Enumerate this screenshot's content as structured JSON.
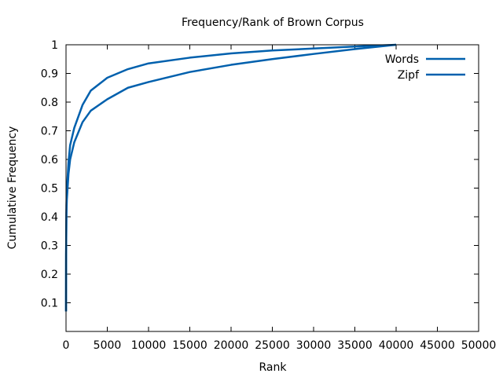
{
  "chart_data": {
    "type": "line",
    "title": "Frequency/Rank of Brown Corpus",
    "xlabel": "Rank",
    "ylabel": "Cumulative Frequency",
    "xlim": [
      0,
      50000
    ],
    "ylim": [
      0.0,
      1.0
    ],
    "x_ticks": [
      "0",
      "5000",
      "10000",
      "15000",
      "20000",
      "25000",
      "30000",
      "35000",
      "40000",
      "45000",
      "50000"
    ],
    "y_ticks": [
      "0.1",
      "0.2",
      "0.3",
      "0.4",
      "0.5",
      "0.6",
      "0.7",
      "0.8",
      "0.9",
      "1"
    ],
    "grid": false,
    "legend_position": "top-right",
    "color": "#0060ad",
    "series": [
      {
        "name": "Words",
        "x": [
          1,
          10,
          50,
          100,
          300,
          500,
          1000,
          2000,
          3000,
          5000,
          7500,
          10000,
          15000,
          20000,
          25000,
          30000,
          35000,
          40000
        ],
        "y": [
          0.07,
          0.27,
          0.44,
          0.49,
          0.59,
          0.65,
          0.71,
          0.79,
          0.84,
          0.885,
          0.915,
          0.935,
          0.955,
          0.97,
          0.98,
          0.987,
          0.994,
          1.0
        ]
      },
      {
        "name": "Zipf",
        "x": [
          1,
          10,
          50,
          100,
          300,
          500,
          1000,
          2000,
          3000,
          5000,
          7500,
          10000,
          15000,
          20000,
          25000,
          30000,
          35000,
          40000
        ],
        "y": [
          0.07,
          0.26,
          0.41,
          0.46,
          0.55,
          0.6,
          0.66,
          0.73,
          0.77,
          0.81,
          0.85,
          0.87,
          0.905,
          0.93,
          0.95,
          0.968,
          0.985,
          1.0
        ]
      }
    ]
  }
}
